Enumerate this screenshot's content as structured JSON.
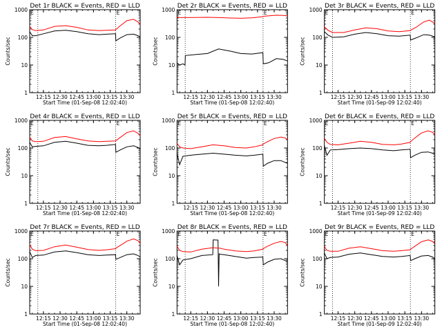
{
  "figure": {
    "x_tick_labels": [
      "12:15",
      "12:30",
      "12:45",
      "13:00",
      "13:15",
      "13:30"
    ],
    "y_tick_labels": [
      "1",
      "10",
      "100",
      "1000"
    ]
  },
  "chart_data": [
    {
      "type": "line",
      "title": "Det 1r BLACK = Events, RED = LLD",
      "xlabel": "Start Time (01-Sep-08 12:02:40)",
      "ylabel": "Counts/sec",
      "yscale": "log",
      "ylim": [
        1,
        1000
      ],
      "xlim": [
        "12:02:40",
        "13:42:00"
      ],
      "x_ticks": [
        "12:15",
        "12:30",
        "12:45",
        "13:00",
        "13:15",
        "13:30"
      ],
      "markers": [
        {
          "label": "E",
          "time": "12:02:40"
        },
        {
          "label": "E",
          "time": "13:20:00"
        }
      ],
      "dotted_lines": [
        "12:10:00",
        "13:20:00"
      ],
      "x": [
        "12:02:40",
        "12:05:00",
        "12:08:00",
        "12:15:00",
        "12:25:00",
        "12:35:00",
        "12:45:00",
        "12:55:00",
        "13:05:00",
        "13:12:00",
        "13:19:50",
        "13:20:10",
        "13:24:00",
        "13:30:00",
        "13:36:00",
        "13:40:00",
        "13:42:00"
      ],
      "series": [
        {
          "name": "BLACK",
          "color": "#000000",
          "values": [
            160,
            115,
            115,
            135,
            170,
            180,
            160,
            135,
            125,
            130,
            135,
            75,
            95,
            125,
            130,
            115,
            105
          ]
        },
        {
          "name": "RED",
          "color": "#ff0000",
          "values": [
            250,
            190,
            175,
            185,
            250,
            265,
            230,
            185,
            175,
            180,
            185,
            190,
            260,
            400,
            450,
            360,
            290
          ]
        }
      ]
    },
    {
      "type": "line",
      "title": "Det 2r BLACK = Events, RED = LLD",
      "xlabel": "Start Time (01-Sep-08 12:02:40)",
      "ylabel": "Counts/sec",
      "yscale": "log",
      "ylim": [
        1,
        1000
      ],
      "xlim": [
        "12:02:40",
        "13:42:00"
      ],
      "x_ticks": [
        "12:15",
        "12:30",
        "12:45",
        "13:00",
        "13:15",
        "13:30"
      ],
      "markers": [
        {
          "label": "E",
          "time": "12:02:40"
        },
        {
          "label": "E",
          "time": "13:20:00"
        }
      ],
      "dotted_lines": [
        "12:10:00",
        "13:20:00"
      ],
      "x": [
        "12:02:40",
        "12:05:00",
        "12:08:00",
        "12:09:50",
        "12:10:10",
        "12:20:00",
        "12:30:00",
        "12:40:00",
        "12:50:00",
        "13:00:00",
        "13:10:00",
        "13:19:50",
        "13:20:10",
        "13:25:00",
        "13:32:00",
        "13:38:00",
        "13:42:00"
      ],
      "series": [
        {
          "name": "BLACK",
          "color": "#000000",
          "values": [
            12,
            10,
            11,
            10,
            22,
            24,
            26,
            38,
            32,
            26,
            25,
            28,
            11,
            12,
            17,
            16,
            14
          ]
        },
        {
          "name": "RED",
          "color": "#ff0000",
          "values": [
            540,
            520,
            520,
            520,
            520,
            525,
            530,
            520,
            500,
            490,
            510,
            560,
            580,
            600,
            630,
            620,
            600
          ]
        }
      ]
    },
    {
      "type": "line",
      "title": "Det 3r BLACK = Events, RED = LLD",
      "xlabel": "Start Time (01-Sep-09 12:02:40)",
      "ylabel": "Counts/sec",
      "yscale": "log",
      "ylim": [
        1,
        1000
      ],
      "xlim": [
        "12:02:40",
        "13:42:00"
      ],
      "x_ticks": [
        "12:15",
        "12:30",
        "12:45",
        "13:00",
        "13:15",
        "13:30"
      ],
      "markers": [
        {
          "label": "E",
          "time": "12:02:40"
        },
        {
          "label": "E",
          "time": "13:20:00"
        }
      ],
      "dotted_lines": [
        "12:10:00",
        "13:20:00"
      ],
      "x": [
        "12:02:40",
        "12:06:00",
        "12:10:00",
        "12:20:00",
        "12:30:00",
        "12:40:00",
        "12:50:00",
        "13:00:00",
        "13:10:00",
        "13:19:50",
        "13:20:10",
        "13:25:00",
        "13:32:00",
        "13:37:00",
        "13:42:00"
      ],
      "series": [
        {
          "name": "BLACK",
          "color": "#000000",
          "values": [
            160,
            120,
            100,
            105,
            130,
            150,
            135,
            115,
            110,
            120,
            80,
            95,
            125,
            120,
            105
          ]
        },
        {
          "name": "RED",
          "color": "#ff0000",
          "values": [
            240,
            180,
            150,
            150,
            185,
            220,
            205,
            170,
            160,
            175,
            180,
            230,
            360,
            420,
            320
          ]
        }
      ]
    },
    {
      "type": "line",
      "title": "Det 4r BLACK = Events, RED = LLD",
      "xlabel": "Start Time (01-Sep-08 12:02:40)",
      "ylabel": "Counts/sec",
      "yscale": "log",
      "ylim": [
        1,
        1000
      ],
      "xlim": [
        "12:02:40",
        "13:42:00"
      ],
      "x_ticks": [
        "12:15",
        "12:30",
        "12:45",
        "13:00",
        "13:15",
        "13:30"
      ],
      "markers": [
        {
          "label": "E",
          "time": "12:02:40"
        },
        {
          "label": "E",
          "time": "13:20:00"
        }
      ],
      "dotted_lines": [
        "12:10:00",
        "13:20:00"
      ],
      "x": [
        "12:02:40",
        "12:05:00",
        "12:08:00",
        "12:15:00",
        "12:25:00",
        "12:35:00",
        "12:45:00",
        "12:55:00",
        "13:05:00",
        "13:12:00",
        "13:19:50",
        "13:20:10",
        "13:24:00",
        "13:30:00",
        "13:36:00",
        "13:40:00",
        "13:42:00"
      ],
      "series": [
        {
          "name": "BLACK",
          "color": "#000000",
          "values": [
            160,
            110,
            115,
            120,
            160,
            175,
            150,
            125,
            120,
            125,
            135,
            70,
            85,
            110,
            120,
            105,
            95
          ]
        },
        {
          "name": "RED",
          "color": "#ff0000",
          "values": [
            250,
            180,
            170,
            175,
            240,
            260,
            215,
            180,
            170,
            175,
            180,
            185,
            240,
            360,
            420,
            340,
            280
          ]
        }
      ]
    },
    {
      "type": "line",
      "title": "Det 5r BLACK = Events, RED = LLD",
      "xlabel": "Start Time (01-Sep-08 12:02:40)",
      "ylabel": "Counts/sec",
      "yscale": "log",
      "ylim": [
        1,
        1000
      ],
      "xlim": [
        "12:02:40",
        "13:42:00"
      ],
      "x_ticks": [
        "12:15",
        "12:30",
        "12:45",
        "13:00",
        "13:15",
        "13:30"
      ],
      "markers": [
        {
          "label": "E",
          "time": "12:02:40"
        },
        {
          "label": "E",
          "time": "13:20:00"
        }
      ],
      "dotted_lines": [
        "12:10:00",
        "13:20:00"
      ],
      "x": [
        "12:02:40",
        "12:05:00",
        "12:08:00",
        "12:15:00",
        "12:25:00",
        "12:35:00",
        "12:45:00",
        "12:55:00",
        "13:05:00",
        "13:12:00",
        "13:19:50",
        "13:20:10",
        "13:24:00",
        "13:30:00",
        "13:36:00",
        "13:40:00",
        "13:42:00"
      ],
      "series": [
        {
          "name": "BLACK",
          "color": "#000000",
          "values": [
            65,
            25,
            50,
            55,
            60,
            65,
            60,
            55,
            52,
            55,
            60,
            22,
            28,
            35,
            35,
            30,
            28
          ]
        },
        {
          "name": "RED",
          "color": "#ff0000",
          "values": [
            150,
            110,
            100,
            95,
            110,
            130,
            120,
            105,
            100,
            110,
            130,
            140,
            170,
            220,
            250,
            230,
            200
          ]
        }
      ]
    },
    {
      "type": "line",
      "title": "Det 6r BLACK = Events, RED = LLD",
      "xlabel": "Start Time (01-Sep-09 12:02:40)",
      "ylabel": "Counts/sec",
      "yscale": "log",
      "ylim": [
        1,
        1000
      ],
      "xlim": [
        "12:02:40",
        "13:42:00"
      ],
      "x_ticks": [
        "12:15",
        "12:30",
        "12:45",
        "13:00",
        "13:15",
        "13:30"
      ],
      "markers": [
        {
          "label": "E",
          "time": "12:02:40"
        },
        {
          "label": "E",
          "time": "13:20:00"
        }
      ],
      "dotted_lines": [
        "12:10:00",
        "13:20:00"
      ],
      "x": [
        "12:02:40",
        "12:05:00",
        "12:08:00",
        "12:15:00",
        "12:25:00",
        "12:35:00",
        "12:45:00",
        "12:55:00",
        "13:05:00",
        "13:12:00",
        "13:19:50",
        "13:20:10",
        "13:24:00",
        "13:30:00",
        "13:36:00",
        "13:40:00",
        "13:42:00"
      ],
      "series": [
        {
          "name": "BLACK",
          "color": "#000000",
          "values": [
            120,
            55,
            85,
            88,
            95,
            100,
            95,
            85,
            80,
            85,
            90,
            45,
            55,
            70,
            72,
            65,
            60
          ]
        },
        {
          "name": "RED",
          "color": "#ff0000",
          "values": [
            220,
            160,
            135,
            130,
            150,
            175,
            160,
            135,
            130,
            140,
            160,
            170,
            230,
            350,
            420,
            370,
            300
          ]
        }
      ]
    },
    {
      "type": "line",
      "title": "Det 7r BLACK = Events, RED = LLD",
      "xlabel": "Start Time (01-Sep-08 12:02:40)",
      "ylabel": "Counts/sec",
      "yscale": "log",
      "ylim": [
        1,
        1000
      ],
      "xlim": [
        "12:02:40",
        "13:42:00"
      ],
      "x_ticks": [
        "12:15",
        "12:30",
        "12:45",
        "13:00",
        "13:15",
        "13:30"
      ],
      "markers": [
        {
          "label": "E",
          "time": "12:02:40"
        },
        {
          "label": "E",
          "time": "13:20:00"
        }
      ],
      "dotted_lines": [
        "12:10:00",
        "13:20:00"
      ],
      "x": [
        "12:02:40",
        "12:05:00",
        "12:08:00",
        "12:15:00",
        "12:25:00",
        "12:35:00",
        "12:45:00",
        "12:55:00",
        "13:05:00",
        "13:12:00",
        "13:19:50",
        "13:20:10",
        "13:24:00",
        "13:30:00",
        "13:36:00",
        "13:40:00",
        "13:42:00"
      ],
      "series": [
        {
          "name": "BLACK",
          "color": "#000000",
          "values": [
            180,
            110,
            130,
            135,
            175,
            190,
            165,
            140,
            130,
            135,
            140,
            95,
            110,
            140,
            150,
            130,
            115
          ]
        },
        {
          "name": "RED",
          "color": "#ff0000",
          "values": [
            320,
            220,
            195,
            200,
            270,
            310,
            260,
            215,
            200,
            210,
            230,
            240,
            300,
            430,
            520,
            450,
            360
          ]
        }
      ]
    },
    {
      "type": "line",
      "title": "Det 8r BLACK = Events, RED = LLD",
      "xlabel": "Start Time (01-Sep-08 12:02:40)",
      "ylabel": "Counts/sec",
      "yscale": "log",
      "ylim": [
        1,
        1000
      ],
      "xlim": [
        "12:02:40",
        "13:42:00"
      ],
      "x_ticks": [
        "12:15",
        "12:30",
        "12:45",
        "13:00",
        "13:15",
        "13:30"
      ],
      "markers": [
        {
          "label": "E",
          "time": "12:02:40"
        },
        {
          "label": "E",
          "time": "13:20:00"
        }
      ],
      "dotted_lines": [
        "12:10:00",
        "13:20:00"
      ],
      "x": [
        "12:02:40",
        "12:05:00",
        "12:08:00",
        "12:15:00",
        "12:25:00",
        "12:34:50",
        "12:35:10",
        "12:39:30",
        "12:40:00",
        "12:40:30",
        "12:41:00",
        "12:45:00",
        "12:55:00",
        "13:05:00",
        "13:12:00",
        "13:19:50",
        "13:20:10",
        "13:24:00",
        "13:30:00",
        "13:36:00",
        "13:40:00",
        "13:42:00"
      ],
      "series": [
        {
          "name": "BLACK",
          "color": "#000000",
          "values": [
            130,
            60,
            90,
            100,
            130,
            140,
            480,
            470,
            10,
            150,
            145,
            140,
            120,
            105,
            110,
            115,
            60,
            75,
            95,
            100,
            85,
            80
          ]
        },
        {
          "name": "RED",
          "color": "#ff0000",
          "values": [
            280,
            200,
            180,
            175,
            220,
            250,
            250,
            240,
            240,
            240,
            240,
            220,
            190,
            180,
            190,
            220,
            230,
            280,
            360,
            420,
            380,
            300
          ]
        }
      ]
    },
    {
      "type": "line",
      "title": "Det 9r BLACK = Events, RED = LLD",
      "xlabel": "Start Time (01-Sep-09 12:02:40)",
      "ylabel": "Counts/sec",
      "yscale": "log",
      "ylim": [
        1,
        1000
      ],
      "xlim": [
        "12:02:40",
        "13:42:00"
      ],
      "x_ticks": [
        "12:15",
        "12:30",
        "12:45",
        "13:00",
        "13:15",
        "13:30"
      ],
      "markers": [
        {
          "label": "E",
          "time": "12:02:40"
        },
        {
          "label": "E",
          "time": "13:20:00"
        }
      ],
      "dotted_lines": [
        "12:10:00",
        "13:20:00"
      ],
      "x": [
        "12:02:40",
        "12:05:00",
        "12:08:00",
        "12:15:00",
        "12:25:00",
        "12:35:00",
        "12:45:00",
        "12:55:00",
        "13:05:00",
        "13:12:00",
        "13:19:50",
        "13:20:10",
        "13:24:00",
        "13:30:00",
        "13:36:00",
        "13:40:00",
        "13:42:00"
      ],
      "series": [
        {
          "name": "BLACK",
          "color": "#000000",
          "values": [
            160,
            100,
            110,
            115,
            145,
            160,
            140,
            120,
            115,
            120,
            130,
            85,
            100,
            125,
            130,
            115,
            100
          ]
        },
        {
          "name": "RED",
          "color": "#ff0000",
          "values": [
            280,
            200,
            185,
            185,
            240,
            270,
            230,
            195,
            185,
            195,
            210,
            220,
            280,
            410,
            480,
            420,
            340
          ]
        }
      ]
    }
  ]
}
